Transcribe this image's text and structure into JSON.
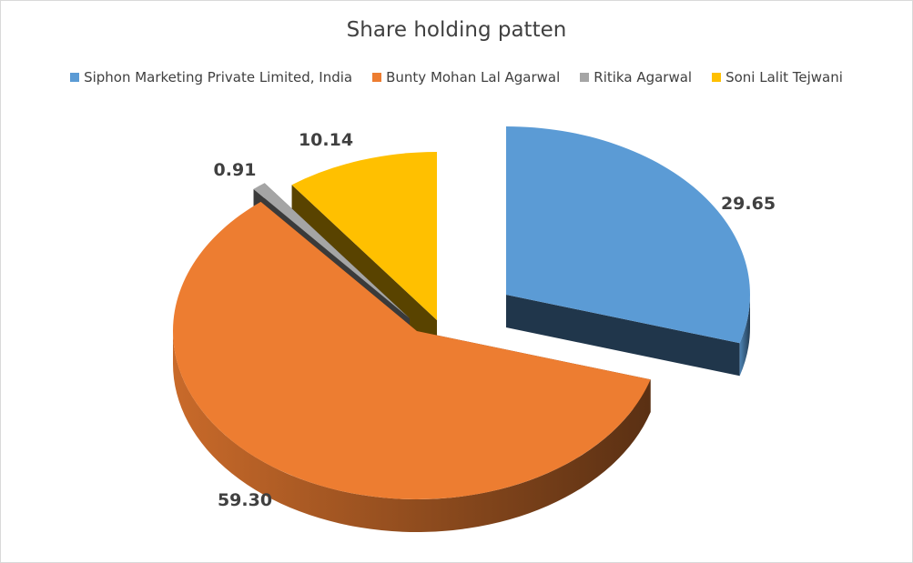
{
  "chart_data": {
    "type": "pie",
    "title": "Share holding patten",
    "legend_position": "top",
    "slices": [
      {
        "label": "Siphon Marketing Private Limited, India",
        "value": 29.65,
        "value_label": "29.65",
        "color": "#5b9bd5"
      },
      {
        "label": "Bunty Mohan Lal Agarwal",
        "value": 59.3,
        "value_label": "59.30",
        "color": "#ed7d31"
      },
      {
        "label": "Ritika Agarwal",
        "value": 0.91,
        "value_label": "0.91",
        "color": "#a5a5a5"
      },
      {
        "label": "Soni Lalit Tejwani",
        "value": 10.14,
        "value_label": "10.14",
        "color": "#ffc000"
      }
    ]
  }
}
